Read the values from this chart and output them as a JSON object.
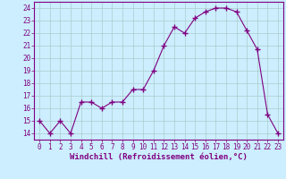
{
  "x": [
    0,
    1,
    2,
    3,
    4,
    5,
    6,
    7,
    8,
    9,
    10,
    11,
    12,
    13,
    14,
    15,
    16,
    17,
    18,
    19,
    20,
    21,
    22,
    23
  ],
  "y": [
    15,
    14,
    15,
    14,
    16.5,
    16.5,
    16,
    16.5,
    16.5,
    17.5,
    17.5,
    19,
    21,
    22.5,
    22,
    23.2,
    23.7,
    24,
    24,
    23.7,
    22.2,
    20.7,
    15.5,
    14
  ],
  "line_color": "#800080",
  "marker": "+",
  "marker_size": 4,
  "bg_color": "#cceeff",
  "grid_color": "#aacccc",
  "xlabel": "Windchill (Refroidissement éolien,°C)",
  "xlim": [
    -0.5,
    23.5
  ],
  "ylim": [
    13.5,
    24.5
  ],
  "yticks": [
    14,
    15,
    16,
    17,
    18,
    19,
    20,
    21,
    22,
    23,
    24
  ],
  "xticks": [
    0,
    1,
    2,
    3,
    4,
    5,
    6,
    7,
    8,
    9,
    10,
    11,
    12,
    13,
    14,
    15,
    16,
    17,
    18,
    19,
    20,
    21,
    22,
    23
  ],
  "tick_fontsize": 5.5,
  "xlabel_fontsize": 6.5,
  "spine_color": "#800080",
  "linewidth": 0.8,
  "marker_linewidth": 1.0
}
